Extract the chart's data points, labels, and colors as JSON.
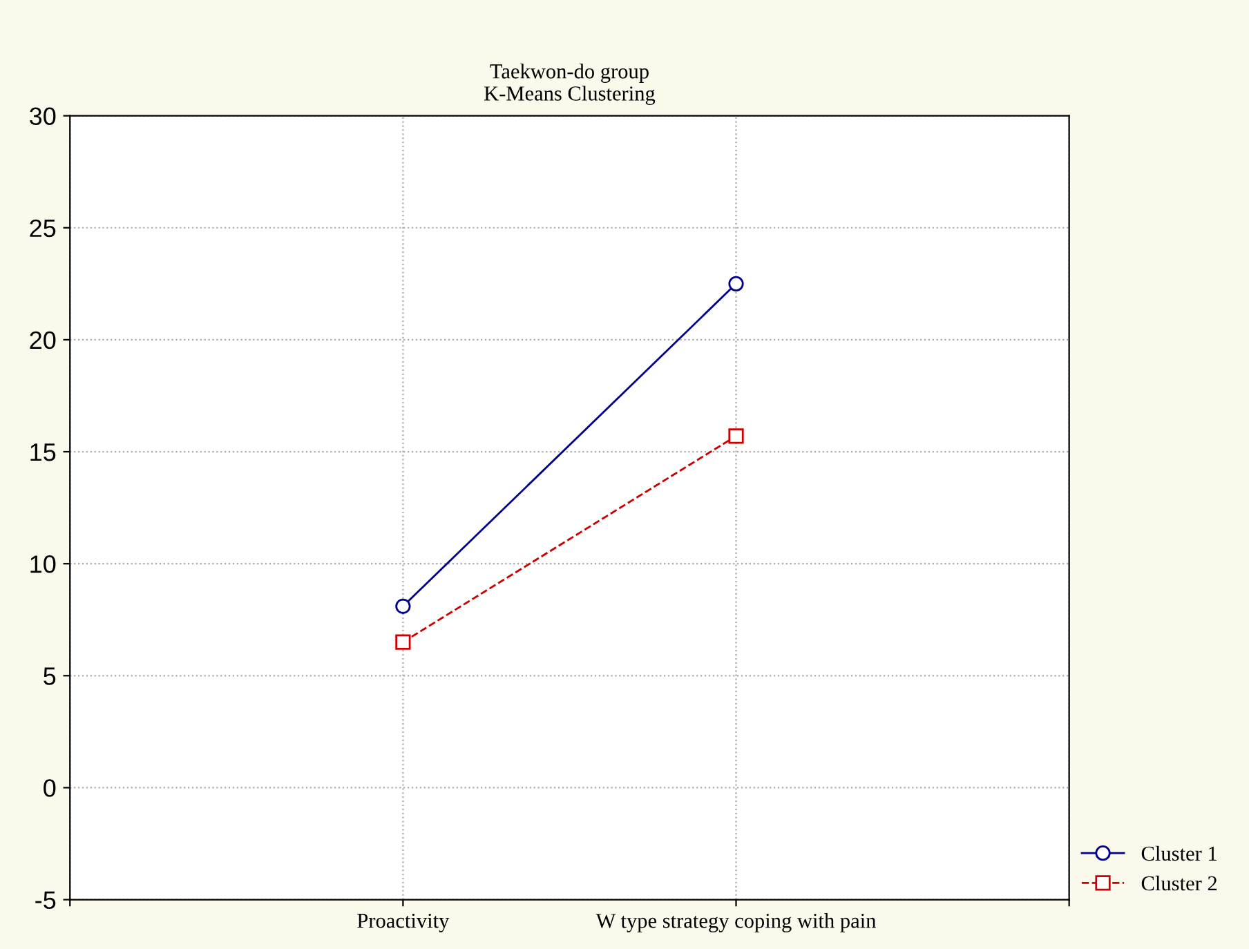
{
  "chart_data": {
    "type": "line",
    "title": "Taekwon-do group\nK-Means Clustering",
    "categories": [
      null,
      "Proactivity",
      "W type strategy coping with pain",
      null
    ],
    "series": [
      {
        "name": "Cluster 1",
        "color": "#00008b",
        "values": [
          null,
          8.1,
          22.5,
          null
        ],
        "marker": "circle",
        "line_style": "solid"
      },
      {
        "name": "Cluster 2",
        "color": "#cc0000",
        "values": [
          null,
          6.5,
          15.7,
          null
        ],
        "marker": "square",
        "line_style": "dashed"
      }
    ],
    "ylim": [
      -5,
      30
    ],
    "yticks": [
      -5,
      0,
      5,
      10,
      15,
      20,
      25,
      30
    ],
    "grid": true,
    "legend": "bottom right"
  }
}
